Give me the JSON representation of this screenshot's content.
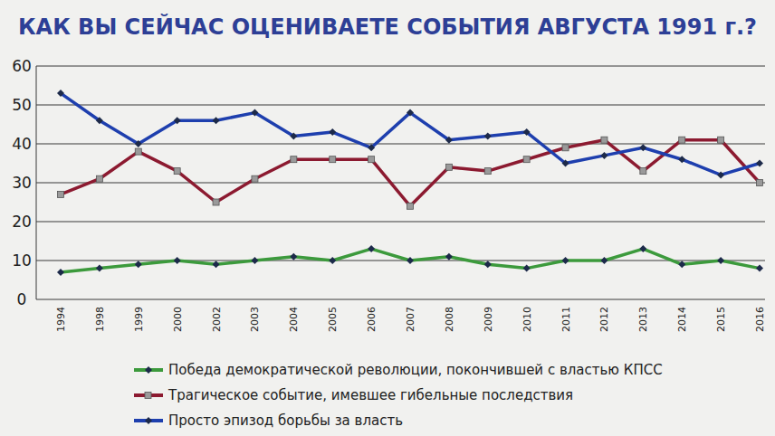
{
  "chart_data": {
    "type": "line",
    "title": "КАК ВЫ СЕЙЧАС ОЦЕНИВАЕТЕ СОБЫТИЯ АВГУСТА 1991 г.?",
    "categories": [
      "1994",
      "1998",
      "1999",
      "2000",
      "2002",
      "2003",
      "2004",
      "2005",
      "2006",
      "2007",
      "2008",
      "2009",
      "2010",
      "2011",
      "2012",
      "2013",
      "2014",
      "2015",
      "2016"
    ],
    "series": [
      {
        "name": "Победа демократической революции, покончившей с властью КПСС",
        "color": "#3c9a3c",
        "marker": "diamond",
        "values": [
          7,
          8,
          9,
          10,
          9,
          10,
          11,
          10,
          13,
          10,
          11,
          9,
          8,
          10,
          10,
          13,
          9,
          10,
          8
        ]
      },
      {
        "name": "Трагическое событие, имевшее гибельные последствия",
        "color": "#8c1a30",
        "marker": "square",
        "values": [
          27,
          31,
          38,
          33,
          25,
          31,
          36,
          36,
          36,
          24,
          34,
          33,
          36,
          39,
          41,
          33,
          41,
          41,
          30
        ]
      },
      {
        "name": "Просто эпизод борьбы за власть",
        "color": "#1e3fae",
        "marker": "diamond",
        "values": [
          53,
          46,
          40,
          46,
          46,
          48,
          42,
          43,
          39,
          48,
          41,
          42,
          43,
          35,
          37,
          39,
          36,
          32,
          35
        ]
      }
    ],
    "ylim": [
      0,
      60
    ],
    "yticks": [
      0,
      10,
      20,
      30,
      40,
      50,
      60
    ],
    "grid": true,
    "legend": "bottom"
  }
}
